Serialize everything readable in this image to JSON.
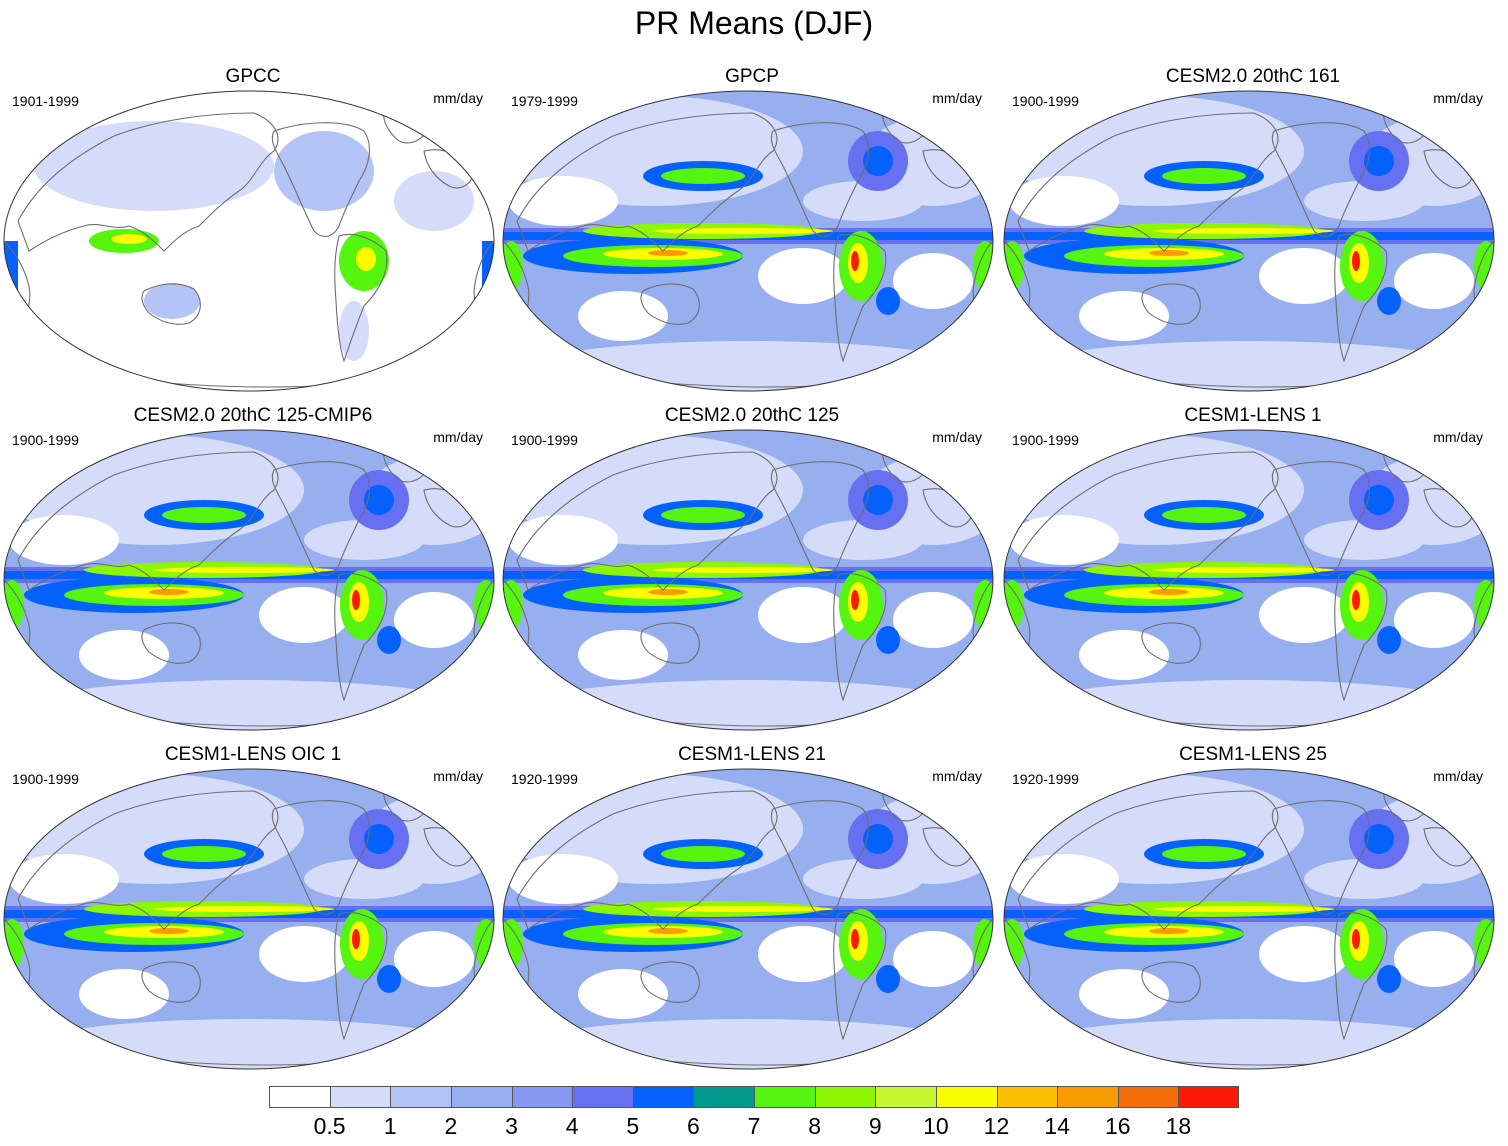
{
  "title": "PR Means (DJF)",
  "units": "mm/day",
  "panels": [
    {
      "title": "GPCC",
      "period": "1901-1999",
      "style": "obs-land"
    },
    {
      "title": "GPCP",
      "period": "1979-1999",
      "style": "full"
    },
    {
      "title": "CESM2.0 20thC 161",
      "period": "1900-1999",
      "style": "full"
    },
    {
      "title": "CESM2.0 20thC 125-CMIP6",
      "period": "1900-1999",
      "style": "full"
    },
    {
      "title": "CESM2.0 20thC 125",
      "period": "1900-1999",
      "style": "full"
    },
    {
      "title": "CESM1-LENS 1",
      "period": "1900-1999",
      "style": "full"
    },
    {
      "title": "CESM1-LENS OIC 1",
      "period": "1900-1999",
      "style": "full"
    },
    {
      "title": "CESM1-LENS 21",
      "period": "1920-1999",
      "style": "full"
    },
    {
      "title": "CESM1-LENS 25",
      "period": "1920-1999",
      "style": "full"
    }
  ],
  "colorbar": {
    "colors": [
      "#ffffff",
      "#d4dcfa",
      "#b5c4f6",
      "#97afef",
      "#8497f3",
      "#6670f0",
      "#0561fc",
      "#009b8f",
      "#55f50f",
      "#8df703",
      "#c7f732",
      "#fcfc01",
      "#fcbf04",
      "#fb9b04",
      "#f56c0a",
      "#fb1a03"
    ],
    "labels": [
      "0.5",
      "1",
      "2",
      "3",
      "4",
      "5",
      "6",
      "7",
      "8",
      "9",
      "10",
      "12",
      "14",
      "16",
      "18"
    ]
  }
}
